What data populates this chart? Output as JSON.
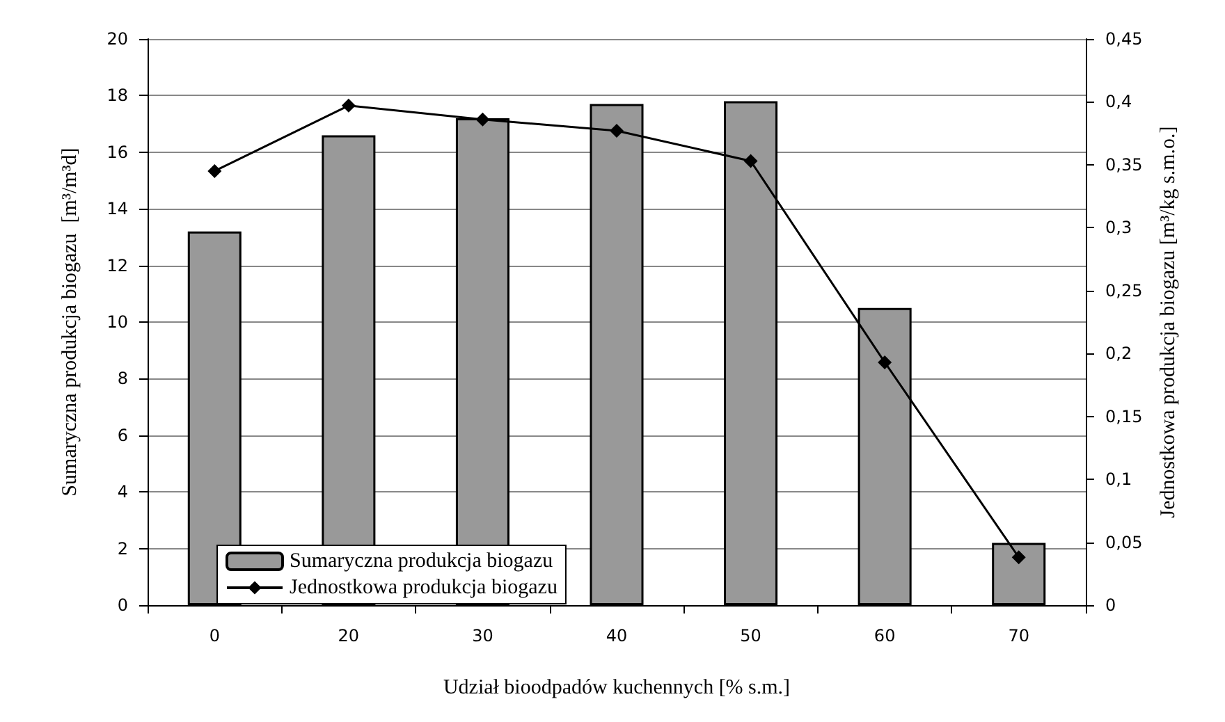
{
  "chart_data": {
    "type": "bar",
    "xlabel": "Udział bioodpadów kuchennych [% s.m.]",
    "ylabel": "Sumaryczna produkcja biogazu  [m³/m³d]",
    "y2label": "Jednostkowa produkcja biogazu [m³/kg s.m.o.]",
    "categories": [
      "0",
      "20",
      "30",
      "40",
      "50",
      "60",
      "70"
    ],
    "series": [
      {
        "name": "Sumaryczna produkcja biogazu",
        "color": "#999999",
        "values": [
          13.2,
          16.6,
          17.2,
          17.7,
          17.8,
          10.5,
          2.2
        ]
      },
      {
        "name": "Jednostkowa produkcja biogazu",
        "type": "line",
        "axis": "y2",
        "color": "#000000",
        "values": [
          0.345,
          0.397,
          0.386,
          0.377,
          0.353,
          0.193,
          0.038
        ]
      }
    ],
    "ylim": [
      0,
      20
    ],
    "yticks": [
      0,
      2,
      4,
      6,
      8,
      10,
      12,
      14,
      16,
      18,
      20
    ],
    "y2lim": [
      0,
      0.45
    ],
    "y2ticks": [
      0,
      {
        "value": 0.05,
        "label": "0,05"
      },
      {
        "value": 0.1,
        "label": "0,1"
      },
      {
        "value": 0.15,
        "label": "0,15"
      },
      {
        "value": 0.2,
        "label": "0,2"
      },
      {
        "value": 0.25,
        "label": "0,25"
      },
      {
        "value": 0.3,
        "label": "0,3"
      },
      {
        "value": 0.35,
        "label": "0,35"
      },
      {
        "value": 0.4,
        "label": "0,4"
      },
      {
        "value": 0.45,
        "label": "0,45"
      }
    ],
    "grid": "y",
    "legend": "bottom left",
    "marker": "diamond",
    "line_style": "solid"
  }
}
